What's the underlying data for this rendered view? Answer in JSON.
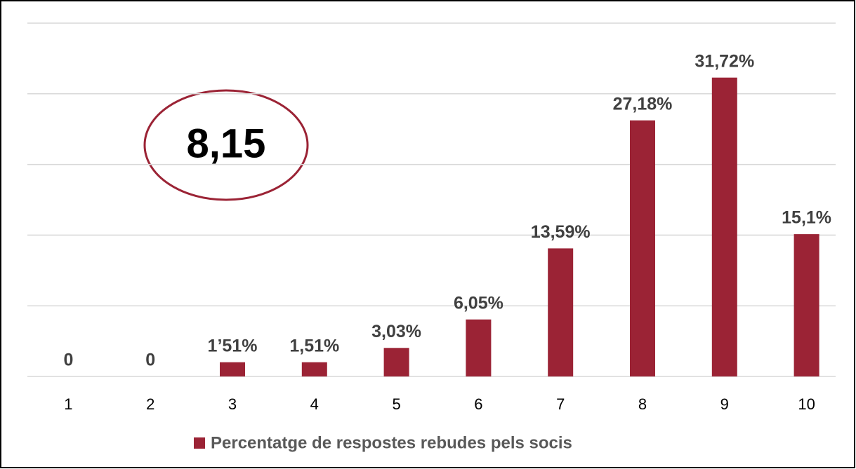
{
  "chart_data": {
    "type": "bar",
    "categories": [
      "1",
      "2",
      "3",
      "4",
      "5",
      "6",
      "7",
      "8",
      "9",
      "10"
    ],
    "series": [
      {
        "name": "Percentatge de respostes rebudes pels socis",
        "color": "#9b2335",
        "values": [
          0,
          0,
          1.51,
          1.51,
          3.03,
          6.05,
          13.59,
          27.18,
          31.72,
          15.1
        ],
        "value_labels": [
          "0",
          "0",
          "1’51%",
          "1,51%",
          "3,03%",
          "6,05%",
          "13,59%",
          "27,18%",
          "31,72%",
          "15,1%"
        ]
      }
    ],
    "ylim": [
      0,
      37.5
    ],
    "yticks": [
      0,
      7.5,
      15,
      22.5,
      30,
      37.5
    ],
    "grid": true,
    "annotation": "8,15",
    "legend": "bottom"
  }
}
